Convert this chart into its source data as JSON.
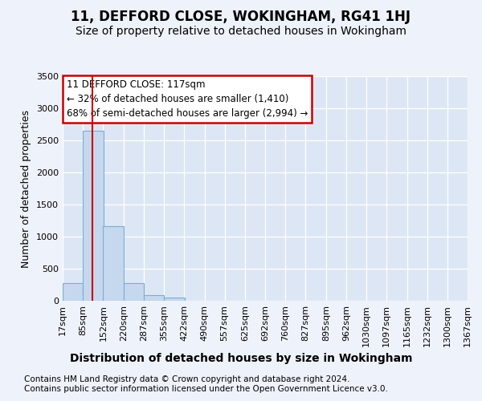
{
  "title": "11, DEFFORD CLOSE, WOKINGHAM, RG41 1HJ",
  "subtitle": "Size of property relative to detached houses in Wokingham",
  "xlabel": "Distribution of detached houses by size in Wokingham",
  "ylabel": "Number of detached properties",
  "footnote1": "Contains HM Land Registry data © Crown copyright and database right 2024.",
  "footnote2": "Contains public sector information licensed under the Open Government Licence v3.0.",
  "bin_labels": [
    "17sqm",
    "85sqm",
    "152sqm",
    "220sqm",
    "287sqm",
    "355sqm",
    "422sqm",
    "490sqm",
    "557sqm",
    "625sqm",
    "692sqm",
    "760sqm",
    "827sqm",
    "895sqm",
    "962sqm",
    "1030sqm",
    "1097sqm",
    "1165sqm",
    "1232sqm",
    "1300sqm",
    "1367sqm"
  ],
  "bin_edges": [
    17,
    85,
    152,
    220,
    287,
    355,
    422,
    490,
    557,
    625,
    692,
    760,
    827,
    895,
    962,
    1030,
    1097,
    1165,
    1232,
    1300,
    1367
  ],
  "bar_heights": [
    270,
    2650,
    1160,
    280,
    90,
    50,
    0,
    0,
    0,
    0,
    0,
    0,
    0,
    0,
    0,
    0,
    0,
    0,
    0,
    0
  ],
  "bar_color": "#c5d8ee",
  "bar_edge_color": "#7aafd4",
  "property_size": 117,
  "vline_color": "#cc0000",
  "ylim": [
    0,
    3500
  ],
  "annotation_line1": "11 DEFFORD CLOSE: 117sqm",
  "annotation_line2": "← 32% of detached houses are smaller (1,410)",
  "annotation_line3": "68% of semi-detached houses are larger (2,994) →",
  "annotation_box_color": "#ffffff",
  "annotation_border_color": "#cc0000",
  "background_color": "#eef2fa",
  "plot_bg_color": "#dde6f5",
  "grid_color": "#ffffff",
  "title_fontsize": 12,
  "subtitle_fontsize": 10,
  "ylabel_fontsize": 9,
  "xlabel_fontsize": 10,
  "tick_fontsize": 8,
  "annot_fontsize": 8.5,
  "footnote_fontsize": 7.5
}
